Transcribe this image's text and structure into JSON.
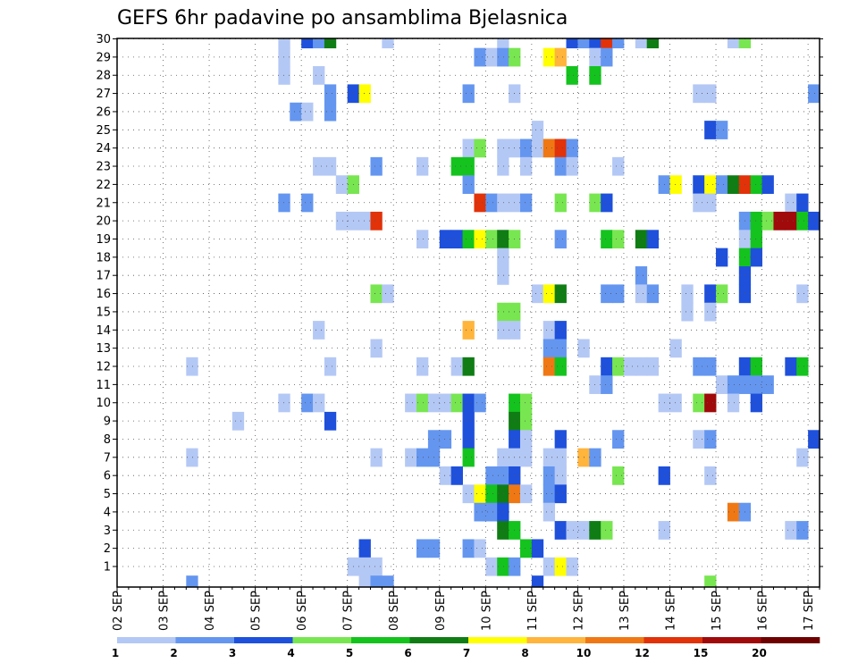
{
  "chart_data": {
    "type": "heatmap",
    "title": "GEFS 6hr padavine po ansamblima Bjelasnica",
    "xlabel": "",
    "ylabel": "",
    "y_ticks": [
      "1",
      "2",
      "3",
      "4",
      "5",
      "6",
      "7",
      "8",
      "9",
      "10",
      "11",
      "12",
      "13",
      "14",
      "15",
      "16",
      "17",
      "18",
      "19",
      "20",
      "21",
      "22",
      "23",
      "24",
      "25",
      "26",
      "27",
      "28",
      "29",
      "30"
    ],
    "x_ticks": [
      "02 SEP",
      "03 SEP",
      "04 SEP",
      "05 SEP",
      "06 SEP",
      "07 SEP",
      "08 SEP",
      "09 SEP",
      "10 SEP",
      "11 SEP",
      "12 SEP",
      "13 SEP",
      "14 SEP",
      "15 SEP",
      "16 SEP",
      "17 SEP"
    ],
    "x_steps": 61,
    "y_members": 30,
    "grid": true,
    "colorbar": {
      "colors": [
        "#b4c8f5",
        "#6496f0",
        "#1e50dc",
        "#78e650",
        "#14c31e",
        "#0f7d14",
        "#ffff00",
        "#ffb43c",
        "#f07814",
        "#e1320a",
        "#a00a0a",
        "#6e0000"
      ],
      "labels": [
        "1",
        "2",
        "3",
        "4",
        "5",
        "6",
        "7",
        "8",
        "10",
        "12",
        "15",
        "20"
      ]
    },
    "cells": [
      [
        30,
        14,
        1
      ],
      [
        30,
        16,
        3
      ],
      [
        30,
        17,
        2
      ],
      [
        30,
        18,
        6
      ],
      [
        30,
        23,
        1
      ],
      [
        30,
        33,
        1
      ],
      [
        30,
        39,
        3
      ],
      [
        30,
        40,
        2
      ],
      [
        30,
        41,
        3
      ],
      [
        30,
        42,
        10
      ],
      [
        30,
        43,
        2
      ],
      [
        30,
        45,
        1
      ],
      [
        30,
        46,
        6
      ],
      [
        30,
        53,
        1
      ],
      [
        30,
        54,
        4
      ],
      [
        29,
        14,
        1
      ],
      [
        29,
        31,
        2
      ],
      [
        29,
        32,
        1
      ],
      [
        29,
        33,
        2
      ],
      [
        29,
        34,
        4
      ],
      [
        29,
        37,
        7
      ],
      [
        29,
        38,
        8
      ],
      [
        29,
        41,
        1
      ],
      [
        29,
        42,
        2
      ],
      [
        28,
        14,
        1
      ],
      [
        28,
        17,
        1
      ],
      [
        28,
        39,
        5
      ],
      [
        28,
        41,
        5
      ],
      [
        27,
        18,
        2
      ],
      [
        27,
        20,
        3
      ],
      [
        27,
        21,
        7
      ],
      [
        27,
        30,
        2
      ],
      [
        27,
        34,
        1
      ],
      [
        27,
        50,
        1
      ],
      [
        27,
        51,
        1
      ],
      [
        27,
        60,
        2
      ],
      [
        26,
        15,
        2
      ],
      [
        26,
        16,
        1
      ],
      [
        26,
        18,
        2
      ],
      [
        25,
        36,
        1
      ],
      [
        25,
        51,
        3
      ],
      [
        25,
        52,
        2
      ],
      [
        24,
        30,
        1
      ],
      [
        24,
        31,
        4
      ],
      [
        24,
        33,
        1
      ],
      [
        24,
        34,
        1
      ],
      [
        24,
        35,
        2
      ],
      [
        24,
        36,
        1
      ],
      [
        24,
        37,
        9
      ],
      [
        24,
        38,
        10
      ],
      [
        24,
        39,
        2
      ],
      [
        23,
        17,
        1
      ],
      [
        23,
        18,
        1
      ],
      [
        23,
        22,
        2
      ],
      [
        23,
        26,
        1
      ],
      [
        23,
        29,
        5
      ],
      [
        23,
        30,
        5
      ],
      [
        23,
        33,
        1
      ],
      [
        23,
        35,
        1
      ],
      [
        23,
        38,
        2
      ],
      [
        23,
        39,
        1
      ],
      [
        23,
        43,
        1
      ],
      [
        22,
        19,
        1
      ],
      [
        22,
        20,
        4
      ],
      [
        22,
        30,
        2
      ],
      [
        22,
        47,
        2
      ],
      [
        22,
        48,
        7
      ],
      [
        22,
        50,
        3
      ],
      [
        22,
        51,
        7
      ],
      [
        22,
        52,
        2
      ],
      [
        22,
        53,
        6
      ],
      [
        22,
        54,
        10
      ],
      [
        22,
        55,
        5
      ],
      [
        22,
        56,
        3
      ],
      [
        21,
        14,
        2
      ],
      [
        21,
        16,
        2
      ],
      [
        21,
        31,
        10
      ],
      [
        21,
        32,
        2
      ],
      [
        21,
        33,
        1
      ],
      [
        21,
        34,
        1
      ],
      [
        21,
        35,
        2
      ],
      [
        21,
        38,
        4
      ],
      [
        21,
        41,
        4
      ],
      [
        21,
        42,
        3
      ],
      [
        21,
        50,
        1
      ],
      [
        21,
        51,
        1
      ],
      [
        21,
        58,
        1
      ],
      [
        21,
        59,
        3
      ],
      [
        20,
        19,
        1
      ],
      [
        20,
        20,
        1
      ],
      [
        20,
        21,
        1
      ],
      [
        20,
        22,
        10
      ],
      [
        20,
        54,
        2
      ],
      [
        20,
        55,
        5
      ],
      [
        20,
        56,
        4
      ],
      [
        20,
        57,
        11
      ],
      [
        20,
        58,
        11
      ],
      [
        20,
        59,
        5
      ],
      [
        20,
        60,
        3
      ],
      [
        19,
        26,
        1
      ],
      [
        19,
        28,
        3
      ],
      [
        19,
        29,
        3
      ],
      [
        19,
        30,
        5
      ],
      [
        19,
        31,
        7
      ],
      [
        19,
        32,
        4
      ],
      [
        19,
        33,
        6
      ],
      [
        19,
        34,
        4
      ],
      [
        19,
        38,
        2
      ],
      [
        19,
        42,
        5
      ],
      [
        19,
        43,
        4
      ],
      [
        19,
        45,
        6
      ],
      [
        19,
        46,
        3
      ],
      [
        19,
        54,
        1
      ],
      [
        19,
        55,
        5
      ],
      [
        18,
        33,
        1
      ],
      [
        18,
        52,
        3
      ],
      [
        18,
        54,
        5
      ],
      [
        18,
        55,
        3
      ],
      [
        17,
        33,
        1
      ],
      [
        17,
        45,
        2
      ],
      [
        17,
        54,
        3
      ],
      [
        16,
        22,
        4
      ],
      [
        16,
        23,
        1
      ],
      [
        16,
        36,
        1
      ],
      [
        16,
        37,
        7
      ],
      [
        16,
        38,
        6
      ],
      [
        16,
        42,
        2
      ],
      [
        16,
        43,
        2
      ],
      [
        16,
        45,
        1
      ],
      [
        16,
        46,
        2
      ],
      [
        16,
        49,
        1
      ],
      [
        16,
        51,
        3
      ],
      [
        16,
        52,
        4
      ],
      [
        16,
        54,
        3
      ],
      [
        16,
        59,
        1
      ],
      [
        15,
        33,
        4
      ],
      [
        15,
        34,
        4
      ],
      [
        15,
        49,
        1
      ],
      [
        15,
        51,
        1
      ],
      [
        14,
        17,
        1
      ],
      [
        14,
        30,
        8
      ],
      [
        14,
        33,
        1
      ],
      [
        14,
        34,
        1
      ],
      [
        14,
        37,
        1
      ],
      [
        14,
        38,
        3
      ],
      [
        13,
        22,
        1
      ],
      [
        13,
        37,
        2
      ],
      [
        13,
        38,
        2
      ],
      [
        13,
        40,
        1
      ],
      [
        13,
        48,
        1
      ],
      [
        12,
        6,
        1
      ],
      [
        12,
        18,
        1
      ],
      [
        12,
        26,
        1
      ],
      [
        12,
        29,
        1
      ],
      [
        12,
        30,
        6
      ],
      [
        12,
        37,
        9
      ],
      [
        12,
        38,
        5
      ],
      [
        12,
        42,
        3
      ],
      [
        12,
        43,
        4
      ],
      [
        12,
        44,
        1
      ],
      [
        12,
        45,
        1
      ],
      [
        12,
        46,
        1
      ],
      [
        12,
        50,
        2
      ],
      [
        12,
        51,
        2
      ],
      [
        12,
        54,
        3
      ],
      [
        12,
        55,
        5
      ],
      [
        12,
        58,
        3
      ],
      [
        12,
        59,
        5
      ],
      [
        11,
        41,
        1
      ],
      [
        11,
        42,
        2
      ],
      [
        11,
        52,
        1
      ],
      [
        11,
        53,
        2
      ],
      [
        11,
        54,
        2
      ],
      [
        11,
        55,
        2
      ],
      [
        11,
        56,
        2
      ],
      [
        10,
        14,
        1
      ],
      [
        10,
        16,
        2
      ],
      [
        10,
        17,
        1
      ],
      [
        10,
        25,
        1
      ],
      [
        10,
        26,
        4
      ],
      [
        10,
        27,
        1
      ],
      [
        10,
        28,
        1
      ],
      [
        10,
        29,
        4
      ],
      [
        10,
        30,
        3
      ],
      [
        10,
        31,
        2
      ],
      [
        10,
        34,
        5
      ],
      [
        10,
        35,
        4
      ],
      [
        10,
        47,
        1
      ],
      [
        10,
        48,
        1
      ],
      [
        10,
        50,
        4
      ],
      [
        10,
        51,
        11
      ],
      [
        10,
        53,
        1
      ],
      [
        10,
        55,
        3
      ],
      [
        9,
        10,
        1
      ],
      [
        9,
        18,
        3
      ],
      [
        9,
        30,
        3
      ],
      [
        9,
        34,
        6
      ],
      [
        9,
        35,
        4
      ],
      [
        8,
        27,
        2
      ],
      [
        8,
        28,
        2
      ],
      [
        8,
        30,
        3
      ],
      [
        8,
        34,
        3
      ],
      [
        8,
        35,
        1
      ],
      [
        8,
        38,
        3
      ],
      [
        8,
        43,
        2
      ],
      [
        8,
        50,
        1
      ],
      [
        8,
        51,
        2
      ],
      [
        8,
        60,
        3
      ],
      [
        7,
        6,
        1
      ],
      [
        7,
        22,
        1
      ],
      [
        7,
        25,
        1
      ],
      [
        7,
        26,
        2
      ],
      [
        7,
        27,
        2
      ],
      [
        7,
        30,
        5
      ],
      [
        7,
        33,
        1
      ],
      [
        7,
        34,
        1
      ],
      [
        7,
        35,
        1
      ],
      [
        7,
        37,
        1
      ],
      [
        7,
        38,
        1
      ],
      [
        7,
        40,
        8
      ],
      [
        7,
        41,
        2
      ],
      [
        7,
        59,
        1
      ],
      [
        6,
        28,
        1
      ],
      [
        6,
        29,
        3
      ],
      [
        6,
        32,
        2
      ],
      [
        6,
        33,
        2
      ],
      [
        6,
        34,
        3
      ],
      [
        6,
        37,
        2
      ],
      [
        6,
        38,
        1
      ],
      [
        6,
        43,
        4
      ],
      [
        6,
        47,
        3
      ],
      [
        6,
        51,
        1
      ],
      [
        5,
        30,
        1
      ],
      [
        5,
        31,
        7
      ],
      [
        5,
        32,
        5
      ],
      [
        5,
        33,
        6
      ],
      [
        5,
        34,
        9
      ],
      [
        5,
        35,
        1
      ],
      [
        5,
        37,
        2
      ],
      [
        5,
        38,
        3
      ],
      [
        4,
        31,
        2
      ],
      [
        4,
        32,
        2
      ],
      [
        4,
        33,
        3
      ],
      [
        4,
        37,
        1
      ],
      [
        4,
        53,
        9
      ],
      [
        4,
        54,
        2
      ],
      [
        3,
        33,
        6
      ],
      [
        3,
        34,
        5
      ],
      [
        3,
        38,
        3
      ],
      [
        3,
        39,
        1
      ],
      [
        3,
        40,
        1
      ],
      [
        3,
        41,
        6
      ],
      [
        3,
        42,
        4
      ],
      [
        3,
        47,
        1
      ],
      [
        3,
        58,
        1
      ],
      [
        3,
        59,
        2
      ],
      [
        2,
        21,
        3
      ],
      [
        2,
        26,
        2
      ],
      [
        2,
        27,
        2
      ],
      [
        2,
        30,
        2
      ],
      [
        2,
        31,
        1
      ],
      [
        2,
        35,
        5
      ],
      [
        2,
        36,
        3
      ],
      [
        1,
        20,
        1
      ],
      [
        1,
        21,
        1
      ],
      [
        1,
        22,
        1
      ],
      [
        1,
        32,
        1
      ],
      [
        1,
        33,
        5
      ],
      [
        1,
        34,
        2
      ],
      [
        1,
        37,
        1
      ],
      [
        1,
        38,
        7
      ],
      [
        1,
        39,
        1
      ],
      [
        0,
        6,
        2
      ],
      [
        0,
        21,
        1
      ],
      [
        0,
        22,
        2
      ],
      [
        0,
        23,
        2
      ],
      [
        0,
        36,
        3
      ],
      [
        0,
        51,
        4
      ]
    ]
  }
}
